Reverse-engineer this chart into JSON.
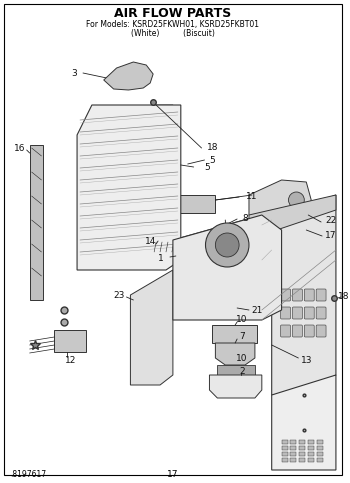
{
  "title": "AIR FLOW PARTS",
  "subtitle_line1": "For Models: KSRD25FKWH01, KSRD25FKBT01",
  "subtitle_line2": "(White)          (Biscuit)",
  "footer_left": ".8197617",
  "footer_center": "17",
  "bg_color": "#ffffff",
  "border_color": "#000000",
  "line_color": "#222222",
  "figsize": [
    3.5,
    4.83
  ],
  "dpi": 100
}
